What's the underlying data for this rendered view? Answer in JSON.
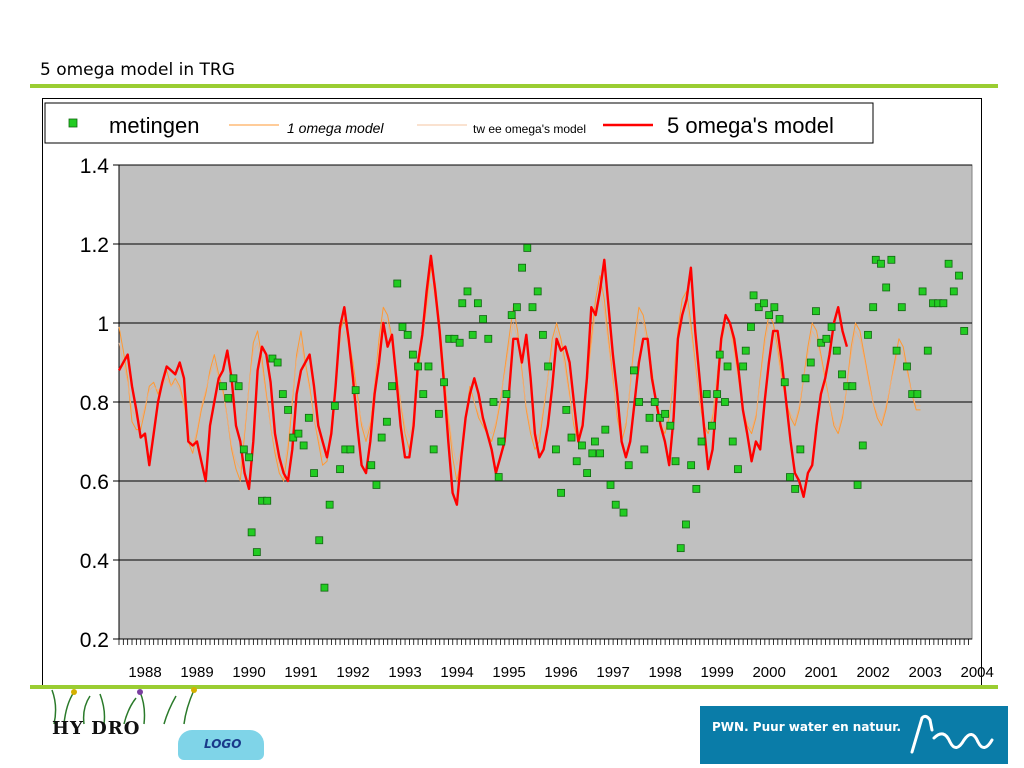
{
  "slide": {
    "title": "5 omega model in TRG"
  },
  "footer": {
    "hydro_label": "HY DRO",
    "logo_label": "LOGO",
    "pwn_text": "PWN. Puur water en natuur.",
    "colors": {
      "rule": "#9acd32",
      "pwn_blue": "#0a7ca8"
    }
  },
  "chart_data": {
    "type": "line",
    "title": "",
    "xlabel": "",
    "ylabel": "",
    "xlim": [
      1988,
      2004.4
    ],
    "ylim": [
      0.2,
      1.4
    ],
    "yticks": [
      "0.2",
      "0.4",
      "0.6",
      "0.8",
      "1",
      "1.2",
      "1.4"
    ],
    "xticks": [
      "1988",
      "1989",
      "1990",
      "1991",
      "1992",
      "1993",
      "1994",
      "1995",
      "1996",
      "1997",
      "1998",
      "1999",
      "2000",
      "2001",
      "2002",
      "2003",
      "2004"
    ],
    "grid": true,
    "legend_position": "top",
    "plot_background": "#c0c0c0",
    "series": [
      {
        "name": "metingen",
        "kind": "points",
        "color": "#22cc22",
        "points": [
          [
            1990.0,
            0.84
          ],
          [
            1990.1,
            0.81
          ],
          [
            1990.2,
            0.86
          ],
          [
            1990.3,
            0.84
          ],
          [
            1990.4,
            0.68
          ],
          [
            1990.5,
            0.66
          ],
          [
            1990.55,
            0.47
          ],
          [
            1990.65,
            0.42
          ],
          [
            1990.75,
            0.55
          ],
          [
            1990.85,
            0.55
          ],
          [
            1990.95,
            0.91
          ],
          [
            1991.05,
            0.9
          ],
          [
            1991.15,
            0.82
          ],
          [
            1991.25,
            0.78
          ],
          [
            1991.35,
            0.71
          ],
          [
            1991.45,
            0.72
          ],
          [
            1991.55,
            0.69
          ],
          [
            1991.65,
            0.76
          ],
          [
            1991.75,
            0.62
          ],
          [
            1991.85,
            0.45
          ],
          [
            1991.95,
            0.33
          ],
          [
            1992.05,
            0.54
          ],
          [
            1992.15,
            0.79
          ],
          [
            1992.25,
            0.63
          ],
          [
            1992.35,
            0.68
          ],
          [
            1992.45,
            0.68
          ],
          [
            1992.55,
            0.83
          ],
          [
            1992.85,
            0.64
          ],
          [
            1992.95,
            0.59
          ],
          [
            1993.05,
            0.71
          ],
          [
            1993.15,
            0.75
          ],
          [
            1993.25,
            0.84
          ],
          [
            1993.35,
            1.1
          ],
          [
            1993.45,
            0.99
          ],
          [
            1993.55,
            0.97
          ],
          [
            1993.65,
            0.92
          ],
          [
            1993.75,
            0.89
          ],
          [
            1993.85,
            0.82
          ],
          [
            1993.95,
            0.89
          ],
          [
            1994.05,
            0.68
          ],
          [
            1994.15,
            0.77
          ],
          [
            1994.25,
            0.85
          ],
          [
            1994.35,
            0.96
          ],
          [
            1994.45,
            0.96
          ],
          [
            1994.55,
            0.95
          ],
          [
            1994.6,
            1.05
          ],
          [
            1994.7,
            1.08
          ],
          [
            1994.8,
            0.97
          ],
          [
            1994.9,
            1.05
          ],
          [
            1995.0,
            1.01
          ],
          [
            1995.1,
            0.96
          ],
          [
            1995.2,
            0.8
          ],
          [
            1995.3,
            0.61
          ],
          [
            1995.35,
            0.7
          ],
          [
            1995.45,
            0.82
          ],
          [
            1995.55,
            1.02
          ],
          [
            1995.65,
            1.04
          ],
          [
            1995.75,
            1.14
          ],
          [
            1995.85,
            1.19
          ],
          [
            1995.95,
            1.04
          ],
          [
            1996.05,
            1.08
          ],
          [
            1996.15,
            0.97
          ],
          [
            1996.25,
            0.89
          ],
          [
            1996.4,
            0.68
          ],
          [
            1996.5,
            0.57
          ],
          [
            1996.6,
            0.78
          ],
          [
            1996.7,
            0.71
          ],
          [
            1996.8,
            0.65
          ],
          [
            1996.9,
            0.69
          ],
          [
            1997.0,
            0.62
          ],
          [
            1997.1,
            0.67
          ],
          [
            1997.15,
            0.7
          ],
          [
            1997.25,
            0.67
          ],
          [
            1997.35,
            0.73
          ],
          [
            1997.45,
            0.59
          ],
          [
            1997.55,
            0.54
          ],
          [
            1997.7,
            0.52
          ],
          [
            1997.8,
            0.64
          ],
          [
            1997.9,
            0.88
          ],
          [
            1998.0,
            0.8
          ],
          [
            1998.1,
            0.68
          ],
          [
            1998.2,
            0.76
          ],
          [
            1998.3,
            0.8
          ],
          [
            1998.4,
            0.76
          ],
          [
            1998.5,
            0.77
          ],
          [
            1998.6,
            0.74
          ],
          [
            1998.7,
            0.65
          ],
          [
            1998.8,
            0.43
          ],
          [
            1998.9,
            0.49
          ],
          [
            1999.0,
            0.64
          ],
          [
            1999.1,
            0.58
          ],
          [
            1999.2,
            0.7
          ],
          [
            1999.3,
            0.82
          ],
          [
            1999.4,
            0.74
          ],
          [
            1999.5,
            0.82
          ],
          [
            1999.55,
            0.92
          ],
          [
            1999.65,
            0.8
          ],
          [
            1999.7,
            0.89
          ],
          [
            1999.8,
            0.7
          ],
          [
            1999.9,
            0.63
          ],
          [
            2000.0,
            0.89
          ],
          [
            2000.05,
            0.93
          ],
          [
            2000.15,
            0.99
          ],
          [
            2000.2,
            1.07
          ],
          [
            2000.3,
            1.04
          ],
          [
            2000.4,
            1.05
          ],
          [
            2000.5,
            1.02
          ],
          [
            2000.6,
            1.04
          ],
          [
            2000.7,
            1.01
          ],
          [
            2000.8,
            0.85
          ],
          [
            2000.9,
            0.61
          ],
          [
            2001.0,
            0.58
          ],
          [
            2001.1,
            0.68
          ],
          [
            2001.2,
            0.86
          ],
          [
            2001.3,
            0.9
          ],
          [
            2001.4,
            1.03
          ],
          [
            2001.5,
            0.95
          ],
          [
            2001.6,
            0.96
          ],
          [
            2001.7,
            0.99
          ],
          [
            2001.8,
            0.93
          ],
          [
            2001.9,
            0.87
          ],
          [
            2002.0,
            0.84
          ],
          [
            2002.1,
            0.84
          ],
          [
            2002.2,
            0.59
          ],
          [
            2002.3,
            0.69
          ],
          [
            2002.4,
            0.97
          ],
          [
            2002.5,
            1.04
          ],
          [
            2002.55,
            1.16
          ],
          [
            2002.65,
            1.15
          ],
          [
            2002.75,
            1.09
          ],
          [
            2002.85,
            1.16
          ],
          [
            2002.95,
            0.93
          ],
          [
            2003.05,
            1.04
          ],
          [
            2003.15,
            0.89
          ],
          [
            2003.25,
            0.82
          ],
          [
            2003.35,
            0.82
          ],
          [
            2003.45,
            1.08
          ],
          [
            2003.55,
            0.93
          ],
          [
            2003.65,
            1.05
          ],
          [
            2003.75,
            1.05
          ],
          [
            2003.85,
            1.05
          ],
          [
            2003.95,
            1.15
          ],
          [
            2004.05,
            1.08
          ],
          [
            2004.15,
            1.12
          ],
          [
            2004.25,
            0.98
          ]
        ]
      },
      {
        "name": "1 omega model",
        "kind": "line",
        "color": "#ff9933",
        "width": 1,
        "x_start": 1988.0,
        "x_step": 0.0833,
        "values": [
          0.99,
          0.93,
          0.86,
          0.75,
          0.73,
          0.73,
          0.78,
          0.84,
          0.85,
          0.82,
          0.85,
          0.88,
          0.84,
          0.86,
          0.84,
          0.8,
          0.7,
          0.67,
          0.72,
          0.78,
          0.82,
          0.88,
          0.92,
          0.87,
          0.83,
          0.76,
          0.68,
          0.63,
          0.6,
          0.72,
          0.84,
          0.95,
          0.98,
          0.91,
          0.82,
          0.74,
          0.67,
          0.62,
          0.6,
          0.68,
          0.8,
          0.92,
          0.98,
          0.9,
          0.84,
          0.76,
          0.7,
          0.64,
          0.65,
          0.72,
          0.85,
          0.98,
          1.01,
          0.96,
          0.9,
          0.82,
          0.74,
          0.7,
          0.74,
          0.84,
          0.96,
          1.04,
          1.02,
          0.96,
          0.88,
          0.8,
          0.72,
          0.68,
          0.74,
          0.86,
          0.97,
          1.05,
          1.14,
          1.1,
          1.0,
          0.88,
          0.76,
          0.66,
          0.6,
          0.66,
          0.76,
          0.84,
          0.8,
          0.76,
          0.74,
          0.72,
          0.7,
          0.74,
          0.8,
          0.88,
          0.96,
          1.04,
          0.98,
          0.88,
          0.78,
          0.72,
          0.68,
          0.7,
          0.78,
          0.86,
          0.96,
          1.0,
          0.96,
          0.9,
          0.82,
          0.74,
          0.7,
          0.74,
          0.84,
          0.96,
          1.06,
          1.12,
          1.06,
          0.96,
          0.86,
          0.76,
          0.7,
          0.74,
          0.84,
          0.96,
          1.04,
          1.02,
          0.96,
          0.88,
          0.8,
          0.74,
          0.72,
          0.76,
          0.86,
          0.98,
          1.06,
          1.08,
          1.0,
          0.9,
          0.8,
          0.74,
          0.72,
          0.76,
          0.86,
          0.96,
          1.02,
          1.0,
          0.94,
          0.86,
          0.78,
          0.74,
          0.72,
          0.76,
          0.86,
          0.96,
          1.02,
          1.0,
          0.94,
          0.86,
          0.8,
          0.76,
          0.74,
          0.78,
          0.86,
          0.94,
          1.0,
          0.98,
          0.92,
          0.86,
          0.8,
          0.74,
          0.72,
          0.76,
          0.84,
          0.94,
          1.0,
          0.98,
          0.92,
          0.86,
          0.8,
          0.76,
          0.74,
          0.78,
          0.84,
          0.9,
          0.96,
          0.94,
          0.88,
          0.82,
          0.78,
          0.78
        ]
      },
      {
        "name": "tw ee omega's model",
        "kind": "line",
        "color": "#f0b080",
        "width": 0.7,
        "x_start": 1988.0,
        "x_step": 0.0833,
        "values": [
          0.95,
          0.9,
          0.85,
          0.78,
          0.76,
          0.75,
          0.79,
          0.83,
          0.84,
          0.83,
          0.84,
          0.86,
          0.84,
          0.85,
          0.83,
          0.79,
          0.72,
          0.69,
          0.73,
          0.79,
          0.83,
          0.87,
          0.9,
          0.86,
          0.82,
          0.76,
          0.69,
          0.65,
          0.63,
          0.73,
          0.84,
          0.93,
          0.95,
          0.89,
          0.81,
          0.74,
          0.68,
          0.64,
          0.63,
          0.7,
          0.81,
          0.91,
          0.95,
          0.89,
          0.83,
          0.76,
          0.71,
          0.66,
          0.67,
          0.74,
          0.85,
          0.95,
          0.98,
          0.94,
          0.88,
          0.81,
          0.75,
          0.72,
          0.75,
          0.84,
          0.94,
          1.01,
          1.0,
          0.95,
          0.88,
          0.8,
          0.74,
          0.71,
          0.76,
          0.86,
          0.96,
          1.03,
          1.1,
          1.06,
          0.98,
          0.87,
          0.77,
          0.69,
          0.64,
          0.68,
          0.77,
          0.83,
          0.8,
          0.77,
          0.75,
          0.73,
          0.72,
          0.75,
          0.81,
          0.87,
          0.94,
          1.0,
          0.96,
          0.87,
          0.79,
          0.73,
          0.7,
          0.72,
          0.79,
          0.86,
          0.94,
          0.98,
          0.94,
          0.88,
          0.81,
          0.75,
          0.72,
          0.75,
          0.84,
          0.94,
          1.03,
          1.08,
          1.03,
          0.94,
          0.85,
          0.77,
          0.72,
          0.75,
          0.84,
          0.94,
          1.01,
          1.0,
          0.94,
          0.87,
          0.8,
          0.75,
          0.73,
          0.77,
          0.86,
          0.96,
          1.03,
          1.05,
          0.98,
          0.89,
          0.8,
          0.75,
          0.73,
          0.77,
          0.86,
          0.94,
          1.0,
          0.98,
          0.92,
          0.85,
          0.78,
          0.75,
          0.73,
          0.77,
          0.85,
          0.94,
          1.0,
          0.98,
          0.92,
          0.85,
          0.8,
          0.77,
          0.75,
          0.79,
          0.86,
          0.92,
          0.98,
          0.96,
          0.91,
          0.85,
          0.8,
          0.75,
          0.73,
          0.77,
          0.84,
          0.92,
          0.98,
          0.96,
          0.91,
          0.85,
          0.8,
          0.77,
          0.75,
          0.79,
          0.84,
          0.89,
          0.94,
          0.92,
          0.87,
          0.82,
          0.79,
          0.79
        ]
      },
      {
        "name": "5 omega's model",
        "kind": "line",
        "color": "#ff0000",
        "width": 2.4,
        "x_start": 1988.0,
        "x_step": 0.0833,
        "values": [
          0.88,
          0.9,
          0.92,
          0.84,
          0.78,
          0.71,
          0.72,
          0.64,
          0.72,
          0.8,
          0.85,
          0.89,
          0.88,
          0.87,
          0.9,
          0.86,
          0.7,
          0.69,
          0.7,
          0.65,
          0.6,
          0.74,
          0.8,
          0.86,
          0.88,
          0.93,
          0.86,
          0.74,
          0.7,
          0.62,
          0.58,
          0.7,
          0.88,
          0.94,
          0.92,
          0.85,
          0.72,
          0.66,
          0.62,
          0.6,
          0.68,
          0.82,
          0.88,
          0.9,
          0.92,
          0.84,
          0.74,
          0.7,
          0.66,
          0.72,
          0.84,
          0.99,
          1.04,
          0.96,
          0.86,
          0.74,
          0.64,
          0.62,
          0.7,
          0.82,
          0.9,
          1.0,
          0.94,
          0.97,
          0.86,
          0.74,
          0.66,
          0.66,
          0.74,
          0.9,
          0.97,
          1.08,
          1.17,
          1.08,
          0.98,
          0.85,
          0.7,
          0.57,
          0.54,
          0.66,
          0.76,
          0.82,
          0.86,
          0.82,
          0.76,
          0.72,
          0.68,
          0.62,
          0.66,
          0.7,
          0.82,
          0.96,
          0.96,
          0.9,
          0.97,
          0.86,
          0.72,
          0.66,
          0.68,
          0.74,
          0.84,
          0.96,
          0.93,
          0.94,
          0.9,
          0.8,
          0.7,
          0.74,
          0.86,
          1.04,
          1.02,
          1.08,
          1.16,
          1.04,
          0.92,
          0.82,
          0.7,
          0.66,
          0.7,
          0.8,
          0.9,
          0.96,
          0.96,
          0.86,
          0.8,
          0.74,
          0.7,
          0.64,
          0.76,
          0.96,
          1.02,
          1.06,
          1.14,
          0.98,
          0.86,
          0.74,
          0.63,
          0.68,
          0.82,
          0.96,
          1.02,
          1.0,
          0.96,
          0.88,
          0.78,
          0.72,
          0.65,
          0.7,
          0.68,
          0.8,
          0.9,
          0.98,
          0.98,
          0.9,
          0.8,
          0.7,
          0.62,
          0.6,
          0.56,
          0.62,
          0.64,
          0.74,
          0.82,
          0.86,
          0.92,
          1.0,
          1.04,
          0.98,
          0.94
        ]
      }
    ]
  }
}
